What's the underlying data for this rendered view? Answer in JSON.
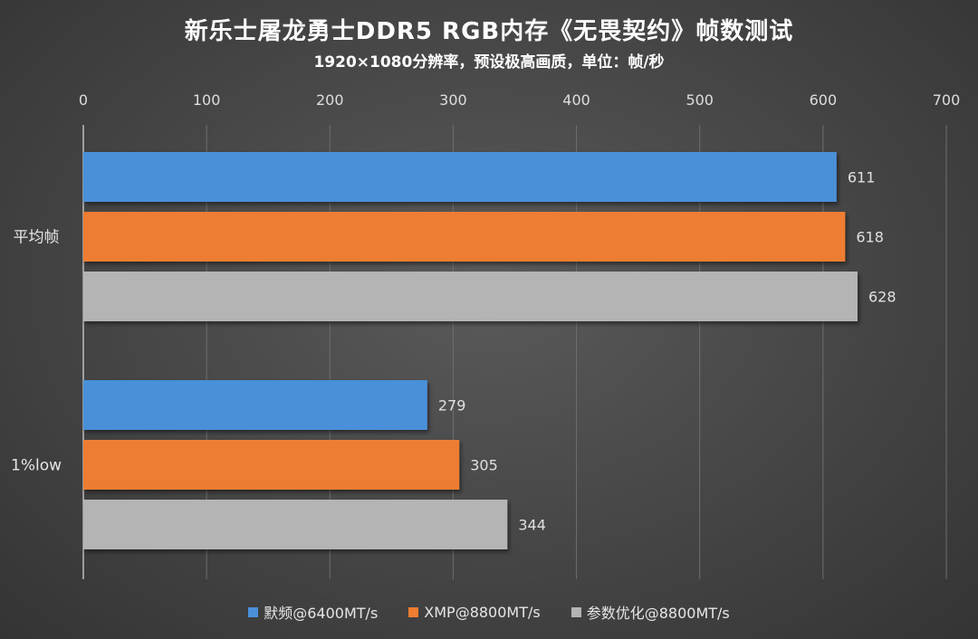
{
  "chart_data": {
    "type": "bar",
    "orientation": "horizontal",
    "title": "新乐士屠龙勇士DDR5 RGB内存《无畏契约》帧数测试",
    "subtitle": "1920×1080分辨率，预设极高画质，单位：帧/秒",
    "categories": [
      "平均帧",
      "1%low"
    ],
    "series": [
      {
        "name": "默频@6400MT/s",
        "color": "#4a90d9",
        "values": [
          611,
          279
        ]
      },
      {
        "name": "XMP@8800MT/s",
        "color": "#ed7d31",
        "values": [
          618,
          305
        ]
      },
      {
        "name": "参数优化@8800MT/s",
        "color": "#b4b4b4",
        "values": [
          628,
          344
        ]
      }
    ],
    "xlim": [
      0,
      700
    ],
    "xticks": [
      0,
      100,
      200,
      300,
      400,
      500,
      600,
      700
    ],
    "x_axis_position": "top",
    "grid": true,
    "data_labels": true,
    "legend_position": "bottom"
  }
}
